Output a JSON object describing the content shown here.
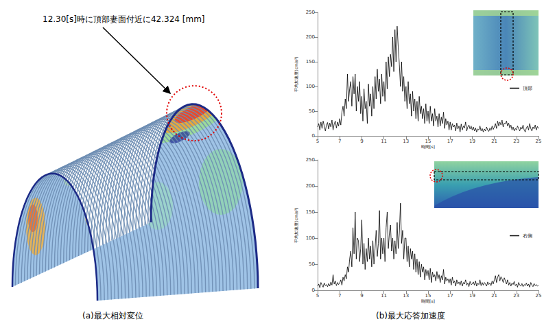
{
  "figure": {
    "panel_a": {
      "caption": "(a)最大相対変位",
      "annotation": "12.30[s]時に頂部妻面付近に42.324 [mm]"
    },
    "panel_b": {
      "caption": "(b)最大応答加速度"
    }
  },
  "chart_data": [
    {
      "type": "line",
      "xlabel": "時間[s]",
      "ylabel": "平均加速度(cm/s²)",
      "xlim": [
        5,
        25
      ],
      "xticks": [
        5,
        7,
        9,
        11,
        13,
        15,
        17,
        19,
        21,
        23,
        25
      ],
      "ylim": [
        0,
        250
      ],
      "yticks": [
        0,
        50,
        100,
        150,
        200,
        250
      ],
      "grid": false,
      "legend": "right",
      "x": [
        5,
        5.1,
        5.2,
        5.3,
        5.4,
        5.5,
        5.6,
        5.7,
        5.8,
        5.9,
        6,
        6.1,
        6.2,
        6.3,
        6.4,
        6.5,
        6.6,
        6.7,
        6.8,
        6.9,
        7,
        7.1,
        7.2,
        7.3,
        7.4,
        7.5,
        7.6,
        7.7,
        7.8,
        7.9,
        8,
        8.1,
        8.2,
        8.3,
        8.4,
        8.5,
        8.6,
        8.7,
        8.8,
        8.9,
        9,
        9.1,
        9.2,
        9.3,
        9.4,
        9.5,
        9.6,
        9.7,
        9.8,
        9.9,
        10,
        10.1,
        10.2,
        10.3,
        10.4,
        10.5,
        10.6,
        10.7,
        10.8,
        10.9,
        11,
        11.1,
        11.2,
        11.3,
        11.4,
        11.5,
        11.6,
        11.7,
        11.8,
        11.9,
        12,
        12.1,
        12.2,
        12.3,
        12.4,
        12.5,
        12.6,
        12.7,
        12.8,
        12.9,
        13,
        13.1,
        13.2,
        13.3,
        13.4,
        13.5,
        13.6,
        13.7,
        13.8,
        13.9,
        14,
        14.1,
        14.2,
        14.3,
        14.4,
        14.5,
        14.6,
        14.7,
        14.8,
        14.9,
        15,
        15.1,
        15.2,
        15.3,
        15.4,
        15.5,
        15.6,
        15.7,
        15.8,
        15.9,
        16,
        16.1,
        16.2,
        16.3,
        16.4,
        16.5,
        16.6,
        16.7,
        16.8,
        16.9,
        17,
        17.1,
        17.2,
        17.3,
        17.4,
        17.5,
        17.6,
        17.7,
        17.8,
        17.9,
        18,
        18.1,
        18.2,
        18.3,
        18.4,
        18.5,
        18.6,
        18.7,
        18.8,
        18.9,
        19,
        19.1,
        19.2,
        19.3,
        19.4,
        19.5,
        19.6,
        19.7,
        19.8,
        19.9,
        20,
        20.1,
        20.2,
        20.3,
        20.4,
        20.5,
        20.6,
        20.7,
        20.8,
        20.9,
        21,
        21.1,
        21.2,
        21.3,
        21.4,
        21.5,
        21.6,
        21.7,
        21.8,
        21.9,
        22,
        22.1,
        22.2,
        22.3,
        22.4,
        22.5,
        22.6,
        22.7,
        22.8,
        22.9,
        23,
        23.1,
        23.2,
        23.3,
        23.4,
        23.5,
        23.6,
        23.7,
        23.8,
        23.9,
        24,
        24.1,
        24.2,
        24.3,
        24.4,
        24.5,
        24.6,
        24.7,
        24.8,
        24.9,
        25
      ],
      "series": [
        {
          "name": "頂部",
          "color": "#000000",
          "values": [
            18,
            25,
            12,
            28,
            15,
            30,
            20,
            10,
            22,
            27,
            14,
            26,
            18,
            32,
            12,
            24,
            30,
            16,
            28,
            20,
            35,
            22,
            48,
            60,
            40,
            75,
            55,
            125,
            70,
            95,
            110,
            60,
            120,
            85,
            125,
            50,
            100,
            70,
            110,
            45,
            80,
            30,
            95,
            55,
            70,
            25,
            105,
            60,
            85,
            40,
            100,
            55,
            120,
            75,
            135,
            90,
            115,
            65,
            125,
            80,
            110,
            70,
            150,
            95,
            160,
            120,
            165,
            140,
            200,
            130,
            215,
            150,
            222,
            180,
            145,
            100,
            150,
            90,
            120,
            70,
            100,
            55,
            110,
            65,
            85,
            40,
            90,
            50,
            75,
            35,
            70,
            30,
            80,
            45,
            60,
            35,
            55,
            25,
            65,
            30,
            50,
            25,
            60,
            30,
            45,
            20,
            55,
            30,
            40,
            18,
            45,
            20,
            38,
            25,
            48,
            15,
            35,
            22,
            30,
            12,
            28,
            12,
            25,
            18,
            22,
            10,
            26,
            14,
            20,
            8,
            24,
            12,
            20,
            16,
            28,
            10,
            18,
            22,
            14,
            20,
            12,
            18,
            10,
            16,
            8,
            14,
            12,
            20,
            10,
            15,
            8,
            14,
            10,
            18,
            12,
            9,
            16,
            11,
            20,
            13,
            18,
            25,
            15,
            30,
            20,
            28,
            22,
            32,
            18,
            26,
            24,
            30,
            20,
            26,
            16,
            22,
            12,
            18,
            10,
            15,
            12,
            20,
            15,
            10,
            18,
            14,
            22,
            12,
            8,
            16,
            20,
            12,
            25,
            15,
            10,
            18,
            14,
            22,
            12,
            19,
            15
          ]
        }
      ]
    },
    {
      "type": "line",
      "xlabel": "時間[s]",
      "ylabel": "平均加速度(cm/s²)",
      "xlim": [
        5,
        25
      ],
      "xticks": [
        5,
        7,
        9,
        11,
        13,
        15,
        17,
        19,
        21,
        23,
        25
      ],
      "ylim": [
        0,
        250
      ],
      "yticks": [
        0,
        50,
        100,
        150,
        200,
        250
      ],
      "grid": false,
      "legend": "right",
      "x": [
        5,
        5.1,
        5.2,
        5.3,
        5.4,
        5.5,
        5.6,
        5.7,
        5.8,
        5.9,
        6,
        6.1,
        6.2,
        6.3,
        6.4,
        6.5,
        6.6,
        6.7,
        6.8,
        6.9,
        7,
        7.1,
        7.2,
        7.3,
        7.4,
        7.5,
        7.6,
        7.7,
        7.8,
        7.9,
        8,
        8.1,
        8.2,
        8.3,
        8.4,
        8.5,
        8.6,
        8.7,
        8.8,
        8.9,
        9,
        9.1,
        9.2,
        9.3,
        9.4,
        9.5,
        9.6,
        9.7,
        9.8,
        9.9,
        10,
        10.1,
        10.2,
        10.3,
        10.4,
        10.5,
        10.6,
        10.7,
        10.8,
        10.9,
        11,
        11.1,
        11.2,
        11.3,
        11.4,
        11.5,
        11.6,
        11.7,
        11.8,
        11.9,
        12,
        12.1,
        12.2,
        12.3,
        12.4,
        12.5,
        12.6,
        12.7,
        12.8,
        12.9,
        13,
        13.1,
        13.2,
        13.3,
        13.4,
        13.5,
        13.6,
        13.7,
        13.8,
        13.9,
        14,
        14.1,
        14.2,
        14.3,
        14.4,
        14.5,
        14.6,
        14.7,
        14.8,
        14.9,
        15,
        15.1,
        15.2,
        15.3,
        15.4,
        15.5,
        15.6,
        15.7,
        15.8,
        15.9,
        16,
        16.1,
        16.2,
        16.3,
        16.4,
        16.5,
        16.6,
        16.7,
        16.8,
        16.9,
        17,
        17.1,
        17.2,
        17.3,
        17.4,
        17.5,
        17.6,
        17.7,
        17.8,
        17.9,
        18,
        18.1,
        18.2,
        18.3,
        18.4,
        18.5,
        18.6,
        18.7,
        18.8,
        18.9,
        19,
        19.1,
        19.2,
        19.3,
        19.4,
        19.5,
        19.6,
        19.7,
        19.8,
        19.9,
        20,
        20.1,
        20.2,
        20.3,
        20.4,
        20.5,
        20.6,
        20.7,
        20.8,
        20.9,
        21,
        21.1,
        21.2,
        21.3,
        21.4,
        21.5,
        21.6,
        21.7,
        21.8,
        21.9,
        22,
        22.1,
        22.2,
        22.3,
        22.4,
        22.5,
        22.6,
        22.7,
        22.8,
        22.9,
        23,
        23.1,
        23.2,
        23.3,
        23.4,
        23.5,
        23.6,
        23.7,
        23.8,
        23.9,
        24,
        24.1,
        24.2,
        24.3,
        24.4,
        24.5,
        24.6,
        24.7,
        24.8,
        24.9,
        25
      ],
      "series": [
        {
          "name": "右側",
          "color": "#000000",
          "values": [
            8,
            12,
            5,
            15,
            10,
            6,
            14,
            9,
            11,
            7,
            13,
            8,
            16,
            10,
            30,
            12,
            18,
            9,
            15,
            11,
            14,
            20,
            10,
            25,
            18,
            30,
            22,
            45,
            35,
            60,
            75,
            45,
            120,
            70,
            150,
            60,
            100,
            95,
            55,
            80,
            135,
            50,
            90,
            40,
            80,
            55,
            100,
            60,
            85,
            45,
            95,
            50,
            80,
            115,
            65,
            90,
            153,
            60,
            100,
            70,
            100,
            55,
            120,
            150,
            80,
            110,
            125,
            75,
            100,
            60,
            95,
            70,
            130,
            80,
            110,
            167,
            90,
            115,
            60,
            100,
            100,
            55,
            85,
            45,
            80,
            60,
            75,
            40,
            70,
            35,
            60,
            30,
            55,
            25,
            50,
            35,
            45,
            20,
            40,
            28,
            38,
            20,
            42,
            15,
            35,
            25,
            30,
            18,
            36,
            22,
            30,
            15,
            28,
            20,
            40,
            12,
            25,
            18,
            22,
            14,
            22,
            10,
            25,
            14,
            18,
            8,
            20,
            12,
            16,
            10,
            18,
            8,
            15,
            12,
            20,
            10,
            14,
            7,
            17,
            11,
            12,
            16,
            10,
            18,
            8,
            14,
            11,
            20,
            9,
            15,
            10,
            15,
            12,
            8,
            16,
            11,
            14,
            9,
            18,
            12,
            20,
            28,
            15,
            25,
            30,
            18,
            26,
            22,
            15,
            24,
            18,
            12,
            20,
            10,
            15,
            8,
            14,
            11,
            17,
            9,
            12,
            6,
            15,
            10,
            8,
            13,
            7,
            11,
            9,
            14,
            8,
            12,
            6,
            15,
            10,
            7,
            13,
            9,
            11,
            8,
            10
          ]
        }
      ]
    }
  ]
}
